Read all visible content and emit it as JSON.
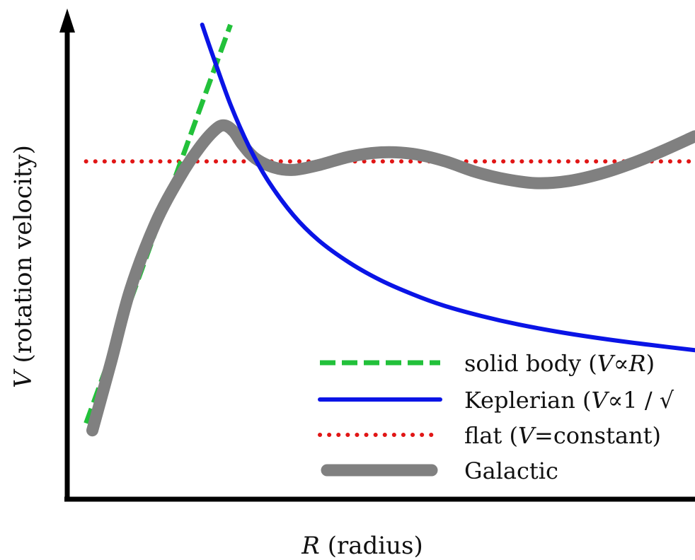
{
  "chart_data": {
    "type": "line",
    "title": "",
    "xlabel": {
      "var": "R",
      "text": "(radius)"
    },
    "ylabel": {
      "var": "V",
      "text": "(rotation velocity)"
    },
    "xlim": [
      0,
      100
    ],
    "ylim": [
      0,
      100
    ],
    "grid": false,
    "legend_position": "bottom-right",
    "axes_color": "#000000",
    "series": [
      {
        "name": "solid body",
        "legend": {
          "text": "solid body (",
          "var": "V",
          "rel": "∝",
          "rhs": "R",
          "close": ")"
        },
        "color": "#22c13a",
        "style": "dashed",
        "x": [
          3,
          26
        ],
        "y": [
          16,
          100
        ]
      },
      {
        "name": "Keplerian",
        "legend": {
          "text": "Keplerian (",
          "var": "V",
          "rel": "∝",
          "rhs": "1 / √",
          "close": ""
        },
        "color": "#0a14e6",
        "style": "solid",
        "x": [
          21.5,
          23,
          26,
          29,
          32,
          36,
          40,
          45,
          50,
          55,
          60,
          66,
          72,
          79,
          86,
          93,
          100
        ],
        "y": [
          100,
          94.2,
          83.2,
          74.2,
          67.1,
          59.9,
          54.6,
          49.8,
          46.1,
          43.2,
          40.8,
          38.6,
          36.8,
          35.1,
          33.7,
          32.5,
          31.4
        ]
      },
      {
        "name": "flat",
        "legend": {
          "text": "flat (",
          "var": "V",
          "rel": "=",
          "rhs": "constant",
          "close": ")"
        },
        "color": "#e11616",
        "style": "dotted",
        "x": [
          3,
          100
        ],
        "y": [
          71.2,
          71.2
        ]
      },
      {
        "name": "Galactic",
        "legend": {
          "text": "Galactic"
        },
        "color": "#808080",
        "style": "thick",
        "x": [
          4,
          7,
          10,
          14,
          18,
          21,
          23.5,
          25,
          26.5,
          28,
          30,
          33,
          36,
          40,
          45,
          50,
          55,
          60,
          65,
          70,
          75,
          80,
          85,
          90,
          95,
          100
        ],
        "y": [
          14.5,
          29,
          44,
          58,
          68,
          74,
          77.8,
          78.8,
          77.5,
          74.6,
          71.8,
          69.9,
          69.4,
          70.4,
          72.2,
          73.1,
          72.8,
          71.3,
          69,
          67.4,
          66.6,
          67.1,
          68.6,
          70.8,
          73.5,
          76.5
        ]
      }
    ]
  }
}
